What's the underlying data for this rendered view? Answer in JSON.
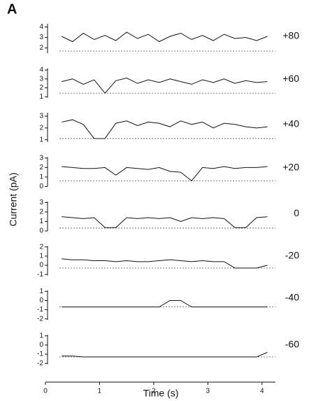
{
  "panel_label": "A",
  "ylabel": "Current (pA)",
  "chart_data": [
    {
      "type": "line",
      "label": "+80",
      "xlim": [
        0,
        4.3
      ],
      "ylim": [
        1.5,
        4.3
      ],
      "yticks": [
        2,
        3,
        4
      ],
      "baseline": 1.7,
      "color": "#111111",
      "x": [
        0.3,
        0.5,
        0.7,
        0.9,
        1.1,
        1.3,
        1.5,
        1.7,
        1.9,
        2.1,
        2.3,
        2.5,
        2.7,
        2.9,
        3.1,
        3.3,
        3.5,
        3.7,
        3.9,
        4.1
      ],
      "values": [
        3.1,
        2.6,
        3.4,
        2.8,
        3.2,
        2.7,
        3.5,
        2.9,
        3.3,
        2.6,
        3.1,
        3.4,
        2.8,
        3.2,
        2.7,
        3.3,
        2.9,
        3.0,
        2.7,
        3.1
      ]
    },
    {
      "type": "line",
      "label": "+60",
      "xlim": [
        0,
        4.3
      ],
      "ylim": [
        0.9,
        4.2
      ],
      "yticks": [
        1,
        2,
        3,
        4
      ],
      "baseline": 1.4,
      "color": "#111111",
      "x": [
        0.3,
        0.5,
        0.7,
        0.9,
        1.1,
        1.3,
        1.5,
        1.7,
        1.9,
        2.1,
        2.3,
        2.5,
        2.7,
        2.9,
        3.1,
        3.3,
        3.5,
        3.7,
        3.9,
        4.1
      ],
      "values": [
        2.7,
        3.0,
        2.4,
        2.9,
        1.4,
        2.8,
        3.1,
        2.5,
        2.9,
        2.6,
        3.0,
        2.7,
        2.4,
        2.9,
        2.6,
        3.0,
        2.5,
        2.8,
        2.6,
        2.7
      ]
    },
    {
      "type": "line",
      "label": "+40",
      "xlim": [
        0,
        4.3
      ],
      "ylim": [
        0.8,
        3.3
      ],
      "yticks": [
        1,
        2,
        3
      ],
      "baseline": 1.1,
      "color": "#111111",
      "x": [
        0.3,
        0.5,
        0.7,
        0.9,
        1.1,
        1.3,
        1.5,
        1.7,
        1.9,
        2.1,
        2.3,
        2.5,
        2.7,
        2.9,
        3.1,
        3.3,
        3.5,
        3.7,
        3.9,
        4.1
      ],
      "values": [
        2.5,
        2.7,
        2.3,
        1.1,
        1.1,
        2.4,
        2.6,
        2.2,
        2.5,
        2.4,
        2.1,
        2.6,
        2.3,
        2.5,
        2.0,
        2.4,
        2.3,
        2.1,
        2.0,
        2.1
      ]
    },
    {
      "type": "line",
      "label": "+20",
      "xlim": [
        0,
        4.3
      ],
      "ylim": [
        0,
        3.1
      ],
      "yticks": [
        0,
        1,
        2,
        3
      ],
      "baseline": 0.6,
      "color": "#111111",
      "x": [
        0.3,
        0.5,
        0.7,
        0.9,
        1.1,
        1.3,
        1.5,
        1.7,
        1.9,
        2.1,
        2.3,
        2.5,
        2.7,
        2.9,
        3.1,
        3.3,
        3.5,
        3.7,
        3.9,
        4.1
      ],
      "values": [
        2.1,
        2.0,
        1.9,
        1.9,
        2.0,
        1.2,
        2.0,
        1.9,
        1.8,
        2.0,
        1.6,
        1.5,
        0.6,
        2.0,
        1.9,
        2.1,
        1.9,
        2.0,
        2.0,
        2.1
      ]
    },
    {
      "type": "line",
      "label": "0",
      "xlim": [
        0,
        4.3
      ],
      "ylim": [
        0,
        3.1
      ],
      "yticks": [
        0,
        1,
        2,
        3
      ],
      "baseline": 0.3,
      "color": "#111111",
      "x": [
        0.3,
        0.5,
        0.7,
        0.9,
        1.1,
        1.3,
        1.5,
        1.7,
        1.9,
        2.1,
        2.3,
        2.5,
        2.7,
        2.9,
        3.1,
        3.3,
        3.5,
        3.7,
        3.9,
        4.1
      ],
      "values": [
        1.5,
        1.4,
        1.3,
        1.4,
        0.35,
        0.35,
        1.4,
        1.3,
        1.4,
        1.3,
        1.4,
        1.0,
        1.4,
        1.3,
        1.4,
        1.3,
        0.35,
        0.35,
        1.4,
        1.5
      ]
    },
    {
      "type": "line",
      "label": "-20",
      "xlim": [
        0,
        4.3
      ],
      "ylim": [
        -1.1,
        2.1
      ],
      "yticks": [
        -1,
        0,
        1,
        2
      ],
      "baseline": -0.3,
      "color": "#111111",
      "x": [
        0.3,
        0.5,
        0.7,
        0.9,
        1.1,
        1.3,
        1.5,
        1.7,
        1.9,
        2.1,
        2.3,
        2.5,
        2.7,
        2.9,
        3.1,
        3.3,
        3.5,
        3.7,
        3.9,
        4.1
      ],
      "values": [
        0.7,
        0.6,
        0.6,
        0.5,
        0.5,
        0.4,
        0.5,
        0.4,
        0.4,
        0.5,
        0.6,
        0.5,
        0.4,
        0.5,
        0.4,
        0.4,
        -0.3,
        -0.3,
        -0.3,
        0.0
      ]
    },
    {
      "type": "line",
      "label": "-40",
      "xlim": [
        0,
        4.3
      ],
      "ylim": [
        -2.1,
        1.1
      ],
      "yticks": [
        -2,
        -1,
        0,
        1
      ],
      "baseline": -0.7,
      "color": "#111111",
      "x": [
        0.3,
        0.5,
        0.7,
        0.9,
        1.1,
        1.3,
        1.5,
        1.7,
        1.9,
        2.1,
        2.3,
        2.5,
        2.7,
        2.9,
        3.1,
        3.3,
        3.5,
        3.7,
        3.9,
        4.1
      ],
      "values": [
        -0.7,
        -0.7,
        -0.7,
        -0.7,
        -0.7,
        -0.7,
        -0.7,
        -0.7,
        -0.7,
        -0.7,
        0.0,
        0.0,
        -0.7,
        -0.7,
        -0.7,
        -0.7,
        -0.7,
        -0.7,
        -0.7,
        -0.7
      ]
    },
    {
      "type": "line",
      "label": "-60",
      "xlim": [
        0,
        4.3
      ],
      "ylim": [
        -2.1,
        1.1
      ],
      "yticks": [
        -2,
        -1,
        0,
        1
      ],
      "baseline": -1.3,
      "color": "#111111",
      "x": [
        0.3,
        0.5,
        0.7,
        0.9,
        1.1,
        1.3,
        1.5,
        1.7,
        1.9,
        2.1,
        2.3,
        2.5,
        2.7,
        2.9,
        3.1,
        3.3,
        3.5,
        3.7,
        3.9,
        4.1
      ],
      "values": [
        -1.2,
        -1.2,
        -1.3,
        -1.3,
        -1.3,
        -1.3,
        -1.3,
        -1.3,
        -1.3,
        -1.3,
        -1.3,
        -1.3,
        -1.3,
        -1.3,
        -1.3,
        -1.3,
        -1.3,
        -1.3,
        -1.3,
        -0.8
      ],
      "xticks": [
        0,
        1,
        2,
        3,
        4
      ],
      "xlabel": "Time (s)"
    }
  ]
}
